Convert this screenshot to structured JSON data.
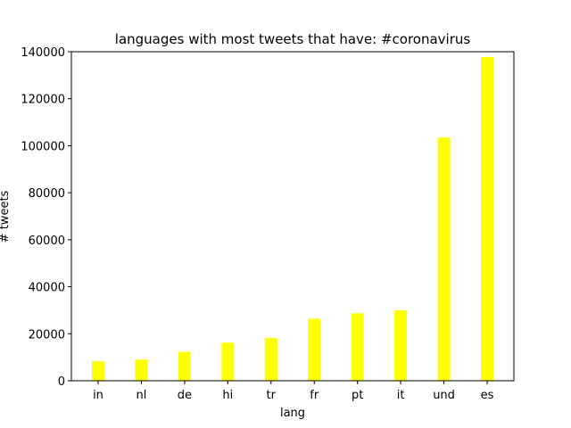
{
  "chart_data": {
    "type": "bar",
    "title": "languages with most tweets that have: #coronavirus",
    "xlabel": "lang",
    "ylabel": "# tweets",
    "categories": [
      "in",
      "nl",
      "de",
      "hi",
      "tr",
      "fr",
      "pt",
      "it",
      "und",
      "es"
    ],
    "values": [
      8300,
      9000,
      12300,
      16200,
      18200,
      26400,
      28700,
      30000,
      103500,
      137800
    ],
    "ylim": [
      0,
      140000
    ],
    "yticks": [
      0,
      20000,
      40000,
      60000,
      80000,
      100000,
      120000,
      140000
    ],
    "bar_color": "#ffff00",
    "grid": false,
    "legend": false
  }
}
